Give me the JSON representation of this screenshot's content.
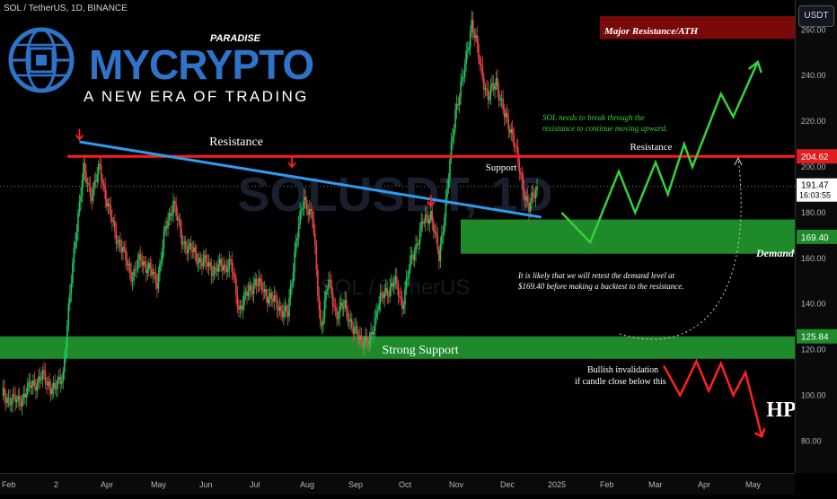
{
  "header": {
    "symbol_title": "SOL / TetherUS, 1D, BINANCE",
    "currency_button": "USDT"
  },
  "logo": {
    "brand_main": "MYCRYPTO",
    "brand_super": "PARADISE",
    "tagline": "A NEW ERA OF TRADING"
  },
  "watermark": {
    "ticker": "SOLUSDT, 1D",
    "pair": "SOL / TetherUS"
  },
  "signature": "HP",
  "annotations": {
    "resistance_left": "Resistance",
    "resistance_right": "Resistance",
    "support": "Support",
    "strong_support": "Strong Support",
    "demand": "Demand",
    "major_resistance": "Major Resistance/ATH",
    "note_breakthrough_1": "SOL needs to break through the",
    "note_breakthrough_2": "resistance to continue moving upward.",
    "note_retest_1": "It is likely that we will retest the demand level at",
    "note_retest_2": "$169.40 before making a backtest to the resistance.",
    "note_invalidation_1": "Bullish invalidation",
    "note_invalidation_2": "if candle close below this"
  },
  "price_tags": {
    "resistance": "204.62",
    "last_price": "191.47",
    "countdown": "16:03:55",
    "demand": "169.40",
    "strong_support": "125.84"
  },
  "colors": {
    "bull": "#22c55e",
    "bear": "#ef4444",
    "resistance_line": "#ff1a1a",
    "trendline": "#2e9bf0",
    "zone_green": "#1e8a2a",
    "zone_red": "#7a0a0a",
    "projection_up": "#35d13a",
    "projection_down": "#ff2020"
  },
  "chart_data": {
    "type": "candlestick",
    "title": "SOL / TetherUS, 1D, BINANCE",
    "y_axis": {
      "ticks": [
        260,
        240,
        220,
        200,
        180,
        160,
        140,
        120,
        100,
        80
      ],
      "tick_labels": [
        "260.00",
        "240.00",
        "220.00",
        "200.00",
        "180.00",
        "160.00",
        "140.00",
        "120.00",
        "100.00",
        "80.00"
      ]
    },
    "x_axis": {
      "tick_labels": [
        "Feb",
        "2",
        "Apr",
        "May",
        "Jun",
        "Jul",
        "Aug",
        "Sep",
        "Oct",
        "Nov",
        "Dec",
        "2025",
        "Feb",
        "Mar",
        "Apr",
        "May"
      ]
    },
    "anchors": [
      {
        "t": 0,
        "p": 100
      },
      {
        "t": 4,
        "p": 97
      },
      {
        "t": 7,
        "p": 104
      },
      {
        "t": 10,
        "p": 108
      },
      {
        "t": 13,
        "p": 102
      },
      {
        "t": 15,
        "p": 110
      },
      {
        "t": 18,
        "p": 170
      },
      {
        "t": 20,
        "p": 198
      },
      {
        "t": 22,
        "p": 188
      },
      {
        "t": 24,
        "p": 200
      },
      {
        "t": 26,
        "p": 182
      },
      {
        "t": 28,
        "p": 170
      },
      {
        "t": 32,
        "p": 152
      },
      {
        "t": 34,
        "p": 160
      },
      {
        "t": 38,
        "p": 150
      },
      {
        "t": 40,
        "p": 172
      },
      {
        "t": 42,
        "p": 185
      },
      {
        "t": 44,
        "p": 168
      },
      {
        "t": 48,
        "p": 160
      },
      {
        "t": 52,
        "p": 155
      },
      {
        "t": 56,
        "p": 158
      },
      {
        "t": 58,
        "p": 138
      },
      {
        "t": 62,
        "p": 150
      },
      {
        "t": 66,
        "p": 142
      },
      {
        "t": 70,
        "p": 135
      },
      {
        "t": 72,
        "p": 168
      },
      {
        "t": 74,
        "p": 186
      },
      {
        "t": 76,
        "p": 178
      },
      {
        "t": 78,
        "p": 130
      },
      {
        "t": 80,
        "p": 150
      },
      {
        "t": 82,
        "p": 135
      },
      {
        "t": 84,
        "p": 140
      },
      {
        "t": 86,
        "p": 128
      },
      {
        "t": 90,
        "p": 122
      },
      {
        "t": 92,
        "p": 140
      },
      {
        "t": 96,
        "p": 150
      },
      {
        "t": 98,
        "p": 140
      },
      {
        "t": 100,
        "p": 158
      },
      {
        "t": 103,
        "p": 175
      },
      {
        "t": 105,
        "p": 180
      },
      {
        "t": 107,
        "p": 160
      },
      {
        "t": 109,
        "p": 190
      },
      {
        "t": 111,
        "p": 225
      },
      {
        "t": 113,
        "p": 240
      },
      {
        "t": 115,
        "p": 264
      },
      {
        "t": 117,
        "p": 245
      },
      {
        "t": 119,
        "p": 230
      },
      {
        "t": 121,
        "p": 238
      },
      {
        "t": 123,
        "p": 222
      },
      {
        "t": 125,
        "p": 215
      },
      {
        "t": 127,
        "p": 195
      },
      {
        "t": 129,
        "p": 182
      },
      {
        "t": 131,
        "p": 191
      }
    ],
    "levels": {
      "resistance": 204.62,
      "last_price": 191.47,
      "demand_top": 177,
      "demand_bottom": 162,
      "strong_support_top": 125.84,
      "strong_support_bottom": 116,
      "major_resistance_top": 266,
      "major_resistance_bottom": 256
    },
    "trendline": {
      "from": {
        "t": 19,
        "p": 211
      },
      "to": {
        "t": 132,
        "p": 178
      }
    },
    "projection_up": [
      {
        "t": 137,
        "p": 180
      },
      {
        "t": 144,
        "p": 167
      },
      {
        "t": 151,
        "p": 198
      },
      {
        "t": 155,
        "p": 180
      },
      {
        "t": 160,
        "p": 202
      },
      {
        "t": 163,
        "p": 188
      },
      {
        "t": 167,
        "p": 210
      },
      {
        "t": 169,
        "p": 200
      },
      {
        "t": 176,
        "p": 232
      },
      {
        "t": 179,
        "p": 222
      },
      {
        "t": 185,
        "p": 246
      },
      {
        "t": 183,
        "p": 238
      }
    ],
    "projection_down": [
      {
        "t": 162,
        "p": 113
      },
      {
        "t": 166,
        "p": 100
      },
      {
        "t": 170,
        "p": 115
      },
      {
        "t": 173,
        "p": 102
      },
      {
        "t": 176,
        "p": 114
      },
      {
        "t": 179,
        "p": 100
      },
      {
        "t": 182,
        "p": 110
      },
      {
        "t": 186,
        "p": 82
      }
    ],
    "signal_arrows": [
      {
        "t": 19,
        "p": 212
      },
      {
        "t": 71,
        "p": 200
      },
      {
        "t": 105,
        "p": 183
      }
    ],
    "grid": false
  }
}
